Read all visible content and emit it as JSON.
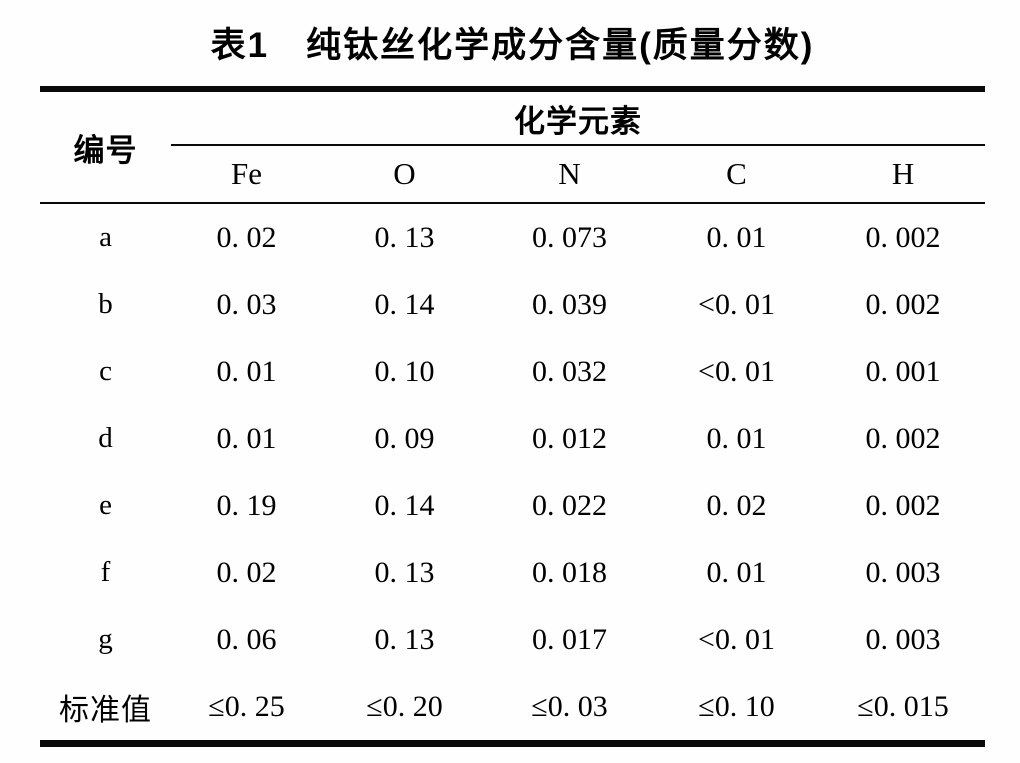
{
  "title": "表1　纯钛丝化学成分含量(质量分数)",
  "table": {
    "row_header_label": "编号",
    "group_header": "化学元素",
    "columns": [
      "Fe",
      "O",
      "N",
      "C",
      "H"
    ],
    "rows": [
      {
        "label": "a",
        "values": [
          "0. 02",
          "0. 13",
          "0. 073",
          "0. 01",
          "0. 002"
        ]
      },
      {
        "label": "b",
        "values": [
          "0. 03",
          "0. 14",
          "0. 039",
          "<0. 01",
          "0. 002"
        ]
      },
      {
        "label": "c",
        "values": [
          "0. 01",
          "0. 10",
          "0. 032",
          "<0. 01",
          "0. 001"
        ]
      },
      {
        "label": "d",
        "values": [
          "0. 01",
          "0. 09",
          "0. 012",
          "0. 01",
          "0. 002"
        ]
      },
      {
        "label": "e",
        "values": [
          "0. 19",
          "0. 14",
          "0. 022",
          "0. 02",
          "0. 002"
        ]
      },
      {
        "label": "f",
        "values": [
          "0. 02",
          "0. 13",
          "0. 018",
          "0. 01",
          "0. 003"
        ]
      },
      {
        "label": "g",
        "values": [
          "0. 06",
          "0. 13",
          "0. 017",
          "<0. 01",
          "0. 003"
        ]
      },
      {
        "label": "标准值",
        "values": [
          "≤0. 25",
          "≤0. 20",
          "≤0. 03",
          "≤0. 10",
          "≤0. 015"
        ]
      }
    ]
  },
  "colors": {
    "text": "#000000",
    "background": "#fefefe",
    "rule": "#0a0a0a"
  }
}
